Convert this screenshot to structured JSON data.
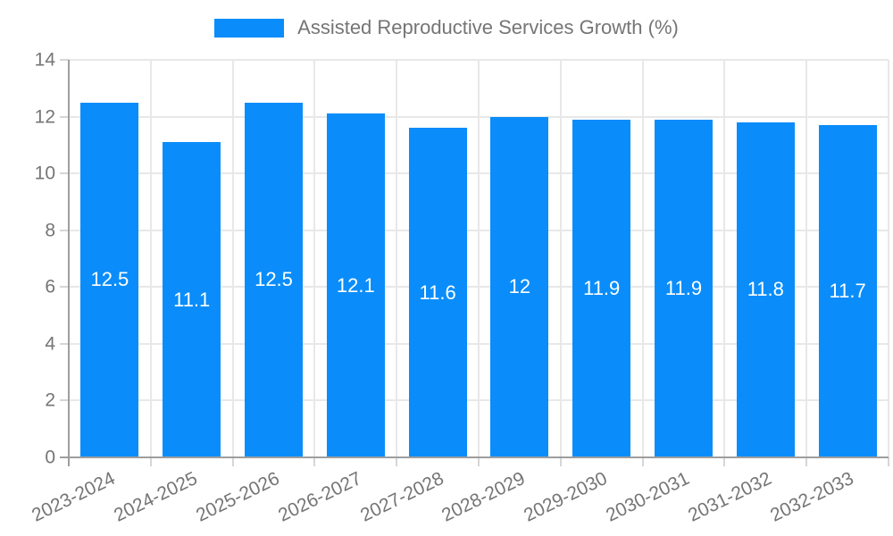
{
  "chart_data": {
    "type": "bar",
    "title": "",
    "legend_position": "top",
    "legend_entries": [
      "Assisted Reproductive Services Growth (%)"
    ],
    "categories": [
      "2023-2024",
      "2024-2025",
      "2025-2026",
      "2026-2027",
      "2027-2028",
      "2028-2029",
      "2029-2030",
      "2030-2031",
      "2031-2032",
      "2032-2033"
    ],
    "series": [
      {
        "name": "Assisted Reproductive Services Growth (%)",
        "values": [
          12.5,
          11.1,
          12.5,
          12.1,
          11.6,
          12,
          11.9,
          11.9,
          11.8,
          11.7
        ]
      }
    ],
    "value_labels": [
      "12.5",
      "11.1",
      "12.5",
      "12.1",
      "11.6",
      "12",
      "11.9",
      "11.9",
      "11.8",
      "11.7"
    ],
    "xlabel": "",
    "ylabel": "",
    "ylim": [
      0,
      14
    ],
    "y_ticks": [
      0,
      2,
      4,
      6,
      8,
      10,
      12,
      14
    ],
    "grid": true,
    "colors": {
      "bar": "#0A8DFA",
      "text": "#757575",
      "axis_line": "#9E9E9E",
      "grid_line": "#E8E8E8",
      "tick_mark": "#D6D6D6",
      "value_label": "#FFFFFF",
      "background": "#FFFFFF"
    }
  }
}
